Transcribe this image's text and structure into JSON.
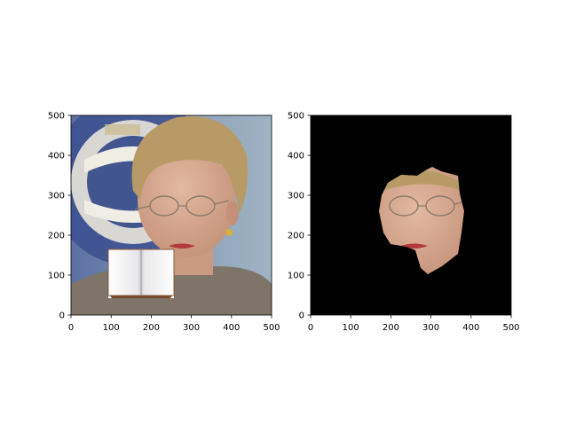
{
  "figure": {
    "panels": [
      {
        "name": "original-photo-panel",
        "image_name": "portrait-photo-with-book-occluder",
        "xticks": [
          "0",
          "100",
          "200",
          "300",
          "400",
          "500"
        ],
        "yticks": [
          "0",
          "100",
          "200",
          "300",
          "400",
          "500"
        ]
      },
      {
        "name": "segmented-face-panel",
        "image_name": "segmented-face-on-black",
        "xticks": [
          "0",
          "100",
          "200",
          "300",
          "400",
          "500"
        ],
        "yticks": [
          "0",
          "100",
          "200",
          "300",
          "400",
          "500"
        ]
      }
    ]
  },
  "chart_data": [
    {
      "type": "image",
      "xlim": [
        0,
        500
      ],
      "ylim": [
        500,
        0
      ],
      "xticks": [
        0,
        100,
        200,
        300,
        400,
        500
      ],
      "yticks": [
        0,
        100,
        200,
        300,
        400,
        500
      ],
      "grid": false,
      "content": "portrait photo with a book image pasted over the lower-left face area",
      "book_occluder_extent": {
        "x": [
          95,
          255
        ],
        "y": [
          335,
          455
        ]
      }
    },
    {
      "type": "image",
      "xlim": [
        0,
        500
      ],
      "ylim": [
        500,
        0
      ],
      "xticks": [
        0,
        100,
        200,
        300,
        400,
        500
      ],
      "yticks": [
        0,
        100,
        200,
        300,
        400,
        500
      ],
      "grid": false,
      "content": "face segmentation mask applied to the photo, background black",
      "background_color": "#000000"
    }
  ],
  "colors": {
    "axis": "#000000",
    "background": "#ffffff",
    "mask_background": "#000000",
    "photo_backdrop": "#8fa1b3",
    "seal_blue": "#3c4f8f",
    "hair": "#b89a66",
    "skin": "#d5a88e",
    "jacket": "#7e7467",
    "lips": "#b23a3a",
    "book_page": "#f4f4f4"
  }
}
